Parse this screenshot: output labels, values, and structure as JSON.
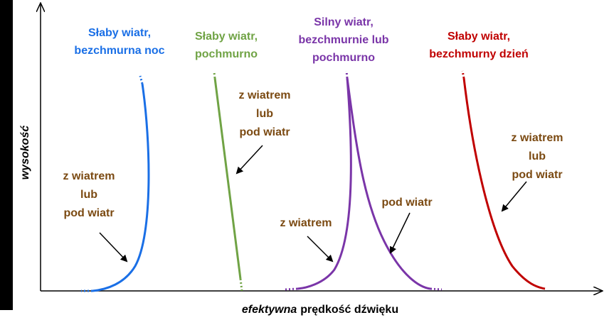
{
  "axes": {
    "y_label": "wysokość",
    "x_label_italic": "efektywna",
    "x_label_rest": "prędkość dźwięku"
  },
  "profiles": [
    {
      "label": [
        "Słaby wiatr,",
        "bezchmurna noc"
      ]
    },
    {
      "label": [
        "Słaby wiatr,",
        "pochmurno"
      ]
    },
    {
      "label": [
        "Silny wiatr,",
        "bezchmurnie lub",
        "pochmurno"
      ]
    },
    {
      "label": [
        "Słaby wiatr,",
        "bezchmurny dzień"
      ]
    }
  ],
  "annotations": [
    {
      "lines": [
        "z wiatrem",
        "lub",
        "pod wiatr"
      ]
    },
    {
      "lines": [
        "z wiatrem",
        "lub",
        "pod wiatr"
      ]
    },
    {
      "lines": [
        "z wiatrem"
      ]
    },
    {
      "lines": [
        "pod wiatr"
      ]
    },
    {
      "lines": [
        "z wiatrem",
        "lub",
        "pod wiatr"
      ]
    }
  ]
}
